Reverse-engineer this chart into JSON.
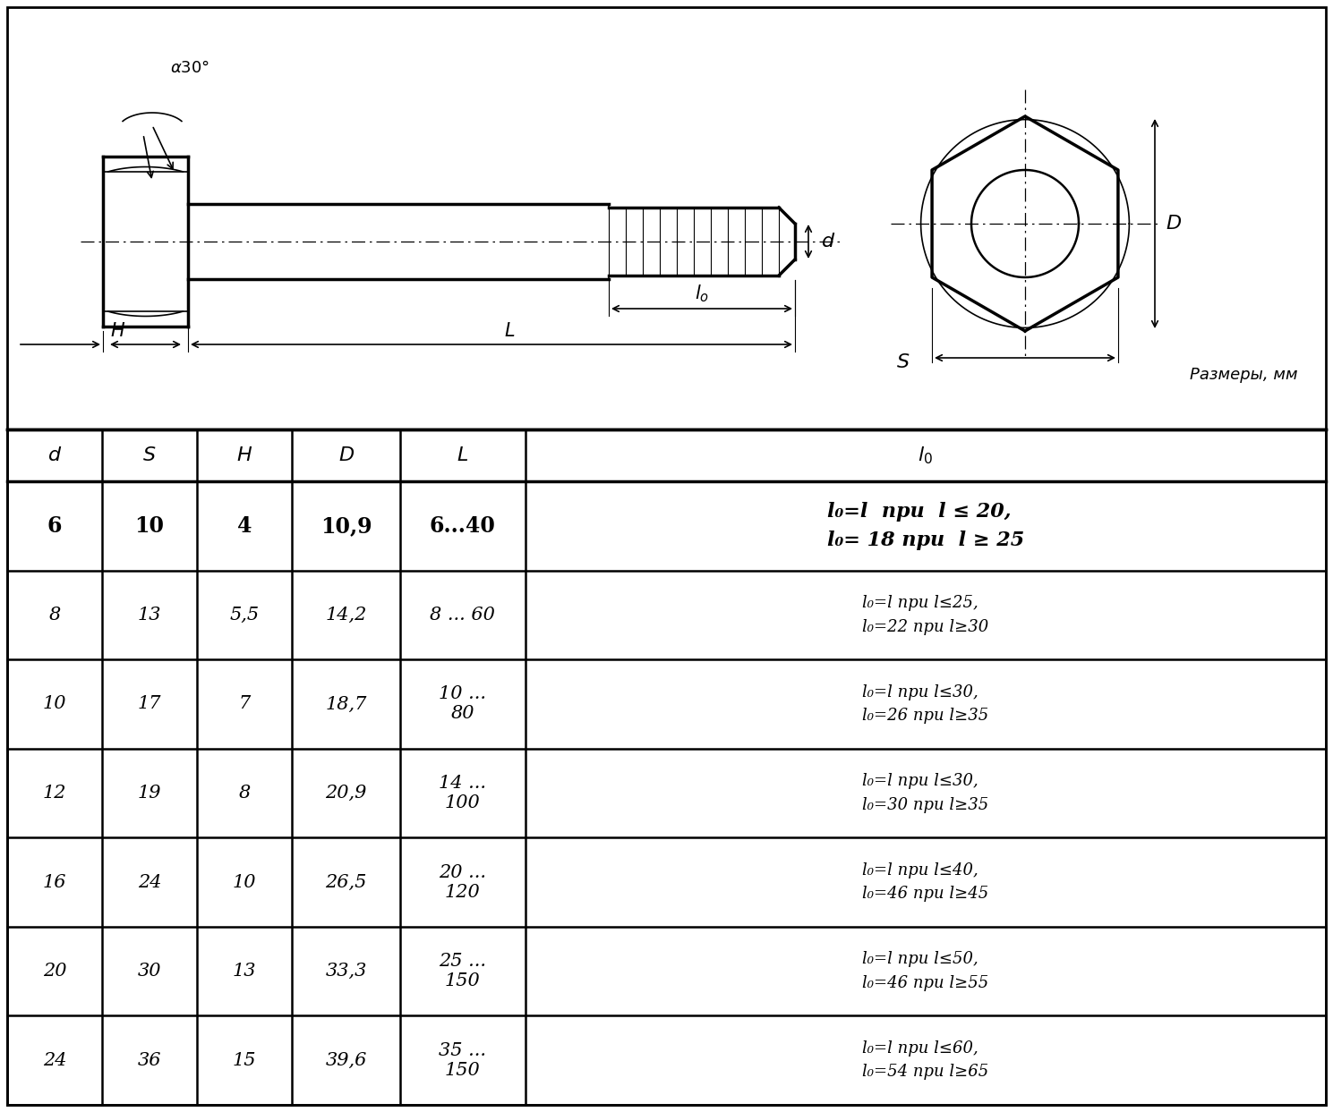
{
  "bg_color": "#ffffff",
  "table_data": [
    [
      "6",
      "10",
      "4",
      "10,9",
      "6...40",
      "l₀=l  при  l ≤ 20,\nl₀= 18 при  l ≥ 25"
    ],
    [
      "8",
      "13",
      "5,5",
      "14,2",
      "8 ... 60",
      "l₀=l при l≤25,\nl₀=22 при l≥30"
    ],
    [
      "10",
      "17",
      "7",
      "18,7",
      "10 ...\n80",
      "l₀=l при l≤30,\nl₀=26 при l≥35"
    ],
    [
      "12",
      "19",
      "8",
      "20,9",
      "14 ...\n100",
      "l₀=l при l≤30,\nl₀=30 при l≥35"
    ],
    [
      "16",
      "24",
      "10",
      "26,5",
      "20 ...\n120",
      "l₀=l при l≤40,\nl₀=46 при l≥45"
    ],
    [
      "20",
      "30",
      "13",
      "33,3",
      "25 ...\n150",
      "l₀=l при l≤50,\nl₀=46 при l≥55"
    ],
    [
      "24",
      "36",
      "15",
      "39,6",
      "35 ...\n150",
      "l₀=l при l≤60,\nl₀=54 при l≥65"
    ]
  ],
  "label_razmer": "Размеры, мм"
}
